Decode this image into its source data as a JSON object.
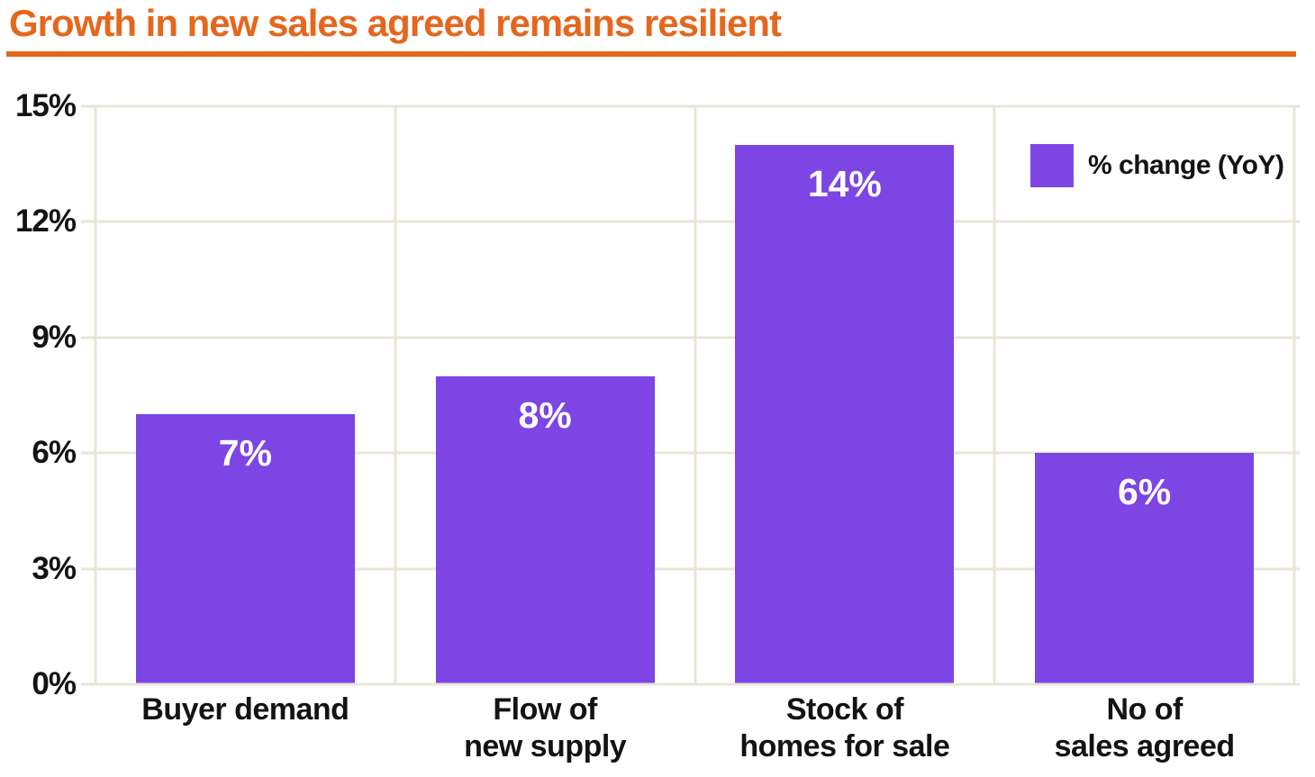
{
  "title": "Growth in new sales agreed remains resilient",
  "colors": {
    "accent_orange": "#e5671d",
    "bar_purple": "#7c45e4",
    "gridline_beige": "#e9e5d7",
    "text_black": "#131313",
    "bar_label_white": "#ffffff",
    "background": "#ffffff"
  },
  "legend": {
    "label": "% change (YoY)"
  },
  "chart_data": {
    "type": "bar",
    "title": "Growth in new sales agreed remains resilient",
    "categories": [
      "Buyer demand",
      "Flow of\nnew supply",
      "Stock of\nhomes for sale",
      "No of\nsales agreed"
    ],
    "values": [
      7,
      8,
      14,
      6
    ],
    "value_labels": [
      "7%",
      "8%",
      "14%",
      "6%"
    ],
    "series_name": "% change (YoY)",
    "xlabel": "",
    "ylabel": "",
    "ylim": [
      0,
      15
    ],
    "y_ticks": [
      0,
      3,
      6,
      9,
      12,
      15
    ],
    "y_tick_labels_top_to_bottom": [
      "15%",
      "12%",
      "9%",
      "6%",
      "3%",
      "0%"
    ],
    "grid": true,
    "legend_position": "top-right"
  }
}
